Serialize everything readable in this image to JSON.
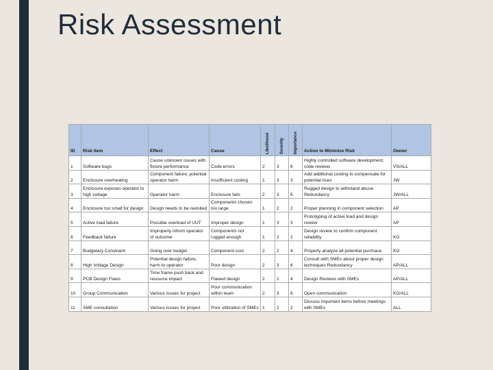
{
  "slide": {
    "title": "Risk Assessment"
  },
  "table": {
    "headers": {
      "id": "ID",
      "risk_item": "Risk Item",
      "effect": "Effect",
      "cause": "Cause",
      "likelihood": "Likelihood",
      "severity": "Severity",
      "importance": "Importance",
      "action": "Action to Minimize Risk",
      "owner": "Owner"
    },
    "rows": [
      {
        "id": "1",
        "risk_item": "Software bugs",
        "effect": "Cause unknown issues with fixture performance",
        "cause": "Code errors",
        "likelihood": "2",
        "severity": "3",
        "importance": "6",
        "action": "Highly controlled software development, code reviews",
        "owner": "VS/ALL"
      },
      {
        "id": "2",
        "risk_item": "Enclosure overheating",
        "effect": "Component failure; potential operator harm",
        "cause": "Insufficient cooling",
        "likelihood": "1",
        "severity": "3",
        "importance": "3",
        "action": "Add additional cooling to compensate for potential rises",
        "owner": "JW"
      },
      {
        "id": "3",
        "risk_item": "Enclosure exposes operator to high voltage",
        "effect": "Operator harm",
        "cause": "Enclosure fails",
        "likelihood": "2",
        "severity": "3",
        "importance": "6",
        "action": "Rugged design to withstand abuse Redundancy",
        "owner": "JW/ALL"
      },
      {
        "id": "4",
        "risk_item": "Enclosure too small for design",
        "effect": "Design needs to be revisited",
        "cause": "Components chosen too large",
        "likelihood": "1",
        "severity": "2",
        "importance": "2",
        "action": "Proper planning in component selection",
        "owner": "AP"
      },
      {
        "id": "5",
        "risk_item": "Active load failure",
        "effect": "Possible overload of UUT",
        "cause": "Improper design",
        "likelihood": "1",
        "severity": "3",
        "importance": "3",
        "action": "Prototyping of active load and design review",
        "owner": "AP"
      },
      {
        "id": "6",
        "risk_item": "Feedback failure",
        "effect": "Improperly inform operator of outcome",
        "cause": "Components not rugged enough",
        "likelihood": "1",
        "severity": "2",
        "importance": "2",
        "action": "Design review to confirm component reliability",
        "owner": "KO"
      },
      {
        "id": "7",
        "risk_item": "Budgetary Constraint",
        "effect": "Going over budget",
        "cause": "Component cost",
        "likelihood": "2",
        "severity": "2",
        "importance": "4",
        "action": "Properly analyze all potential purchase",
        "owner": "KO"
      },
      {
        "id": "8",
        "risk_item": "High Voltage Design",
        "effect": "Potential design failure, harm to operator",
        "cause": "Poor design",
        "likelihood": "2",
        "severity": "3",
        "importance": "6",
        "action": "Consult with SMEs about proper design techniques Redundancy",
        "owner": "AP/ALL"
      },
      {
        "id": "9",
        "risk_item": "PCB Design Flaws",
        "effect": "Time frame push back and resource impact",
        "cause": "Flawed design",
        "likelihood": "2",
        "severity": "2",
        "importance": "4",
        "action": "Design Reviews with SMEs",
        "owner": "AP/ALL"
      },
      {
        "id": "10",
        "risk_item": "Group Communication",
        "effect": "Various issues for project",
        "cause": "Poor communication within team",
        "likelihood": "2",
        "severity": "3",
        "importance": "6",
        "action": "Open communication",
        "owner": "KO/ALL"
      },
      {
        "id": "11",
        "risk_item": "SME consultation",
        "effect": "Various issues for project",
        "cause": "Poor utilization of SMEs",
        "likelihood": "1",
        "severity": "2",
        "importance": "2",
        "action": "Discuss important items before meetings with SMEs",
        "owner": "ALL"
      }
    ]
  }
}
